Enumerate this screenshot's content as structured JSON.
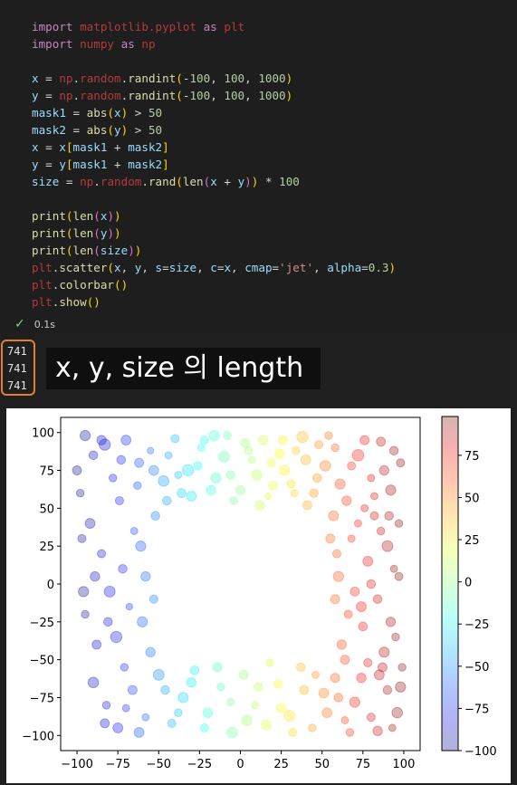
{
  "code_lines": [
    [
      [
        "kw",
        "import"
      ],
      [
        "op",
        " "
      ],
      [
        "mod",
        "matplotlib.pyplot"
      ],
      [
        "op",
        " "
      ],
      [
        "kw",
        "as"
      ],
      [
        "op",
        " "
      ],
      [
        "mod",
        "plt"
      ]
    ],
    [
      [
        "kw",
        "import"
      ],
      [
        "op",
        " "
      ],
      [
        "mod",
        "numpy"
      ],
      [
        "op",
        " "
      ],
      [
        "kw",
        "as"
      ],
      [
        "op",
        " "
      ],
      [
        "mod",
        "np"
      ]
    ],
    [],
    [
      [
        "var",
        "x"
      ],
      [
        "op",
        " = "
      ],
      [
        "mod",
        "np"
      ],
      [
        "op",
        "."
      ],
      [
        "mod",
        "random"
      ],
      [
        "op",
        "."
      ],
      [
        "fn",
        "randint"
      ],
      [
        "br1",
        "("
      ],
      [
        "op",
        "-"
      ],
      [
        "num",
        "100"
      ],
      [
        "op",
        ", "
      ],
      [
        "num",
        "100"
      ],
      [
        "op",
        ", "
      ],
      [
        "num",
        "1000"
      ],
      [
        "br1",
        ")"
      ]
    ],
    [
      [
        "var",
        "y"
      ],
      [
        "op",
        " = "
      ],
      [
        "mod",
        "np"
      ],
      [
        "op",
        "."
      ],
      [
        "mod",
        "random"
      ],
      [
        "op",
        "."
      ],
      [
        "fn",
        "randint"
      ],
      [
        "br1",
        "("
      ],
      [
        "op",
        "-"
      ],
      [
        "num",
        "100"
      ],
      [
        "op",
        ", "
      ],
      [
        "num",
        "100"
      ],
      [
        "op",
        ", "
      ],
      [
        "num",
        "1000"
      ],
      [
        "br1",
        ")"
      ]
    ],
    [
      [
        "var",
        "mask1"
      ],
      [
        "op",
        " = "
      ],
      [
        "fn",
        "abs"
      ],
      [
        "br1",
        "("
      ],
      [
        "var",
        "x"
      ],
      [
        "br1",
        ")"
      ],
      [
        "op",
        " > "
      ],
      [
        "num",
        "50"
      ]
    ],
    [
      [
        "var",
        "mask2"
      ],
      [
        "op",
        " = "
      ],
      [
        "fn",
        "abs"
      ],
      [
        "br1",
        "("
      ],
      [
        "var",
        "y"
      ],
      [
        "br1",
        ")"
      ],
      [
        "op",
        " > "
      ],
      [
        "num",
        "50"
      ]
    ],
    [
      [
        "var",
        "x"
      ],
      [
        "op",
        " = "
      ],
      [
        "var",
        "x"
      ],
      [
        "br1",
        "["
      ],
      [
        "var",
        "mask1"
      ],
      [
        "op",
        " + "
      ],
      [
        "var",
        "mask2"
      ],
      [
        "br1",
        "]"
      ]
    ],
    [
      [
        "var",
        "y"
      ],
      [
        "op",
        " = "
      ],
      [
        "var",
        "y"
      ],
      [
        "br1",
        "["
      ],
      [
        "var",
        "mask1"
      ],
      [
        "op",
        " + "
      ],
      [
        "var",
        "mask2"
      ],
      [
        "br1",
        "]"
      ]
    ],
    [
      [
        "var",
        "size"
      ],
      [
        "op",
        " = "
      ],
      [
        "mod",
        "np"
      ],
      [
        "op",
        "."
      ],
      [
        "mod",
        "random"
      ],
      [
        "op",
        "."
      ],
      [
        "fn",
        "rand"
      ],
      [
        "br1",
        "("
      ],
      [
        "fn",
        "len"
      ],
      [
        "br2",
        "("
      ],
      [
        "var",
        "x"
      ],
      [
        "op",
        " + "
      ],
      [
        "var",
        "y"
      ],
      [
        "br2",
        ")"
      ],
      [
        "br1",
        ")"
      ],
      [
        "op",
        " * "
      ],
      [
        "num",
        "100"
      ]
    ],
    [],
    [
      [
        "fn",
        "print"
      ],
      [
        "br1",
        "("
      ],
      [
        "fn",
        "len"
      ],
      [
        "br2",
        "("
      ],
      [
        "var",
        "x"
      ],
      [
        "br2",
        ")"
      ],
      [
        "br1",
        ")"
      ]
    ],
    [
      [
        "fn",
        "print"
      ],
      [
        "br1",
        "("
      ],
      [
        "fn",
        "len"
      ],
      [
        "br2",
        "("
      ],
      [
        "var",
        "y"
      ],
      [
        "br2",
        ")"
      ],
      [
        "br1",
        ")"
      ]
    ],
    [
      [
        "fn",
        "print"
      ],
      [
        "br1",
        "("
      ],
      [
        "fn",
        "len"
      ],
      [
        "br2",
        "("
      ],
      [
        "var",
        "size"
      ],
      [
        "br2",
        ")"
      ],
      [
        "br1",
        ")"
      ]
    ],
    [
      [
        "mod",
        "plt"
      ],
      [
        "op",
        "."
      ],
      [
        "fn",
        "scatter"
      ],
      [
        "br1",
        "("
      ],
      [
        "var",
        "x"
      ],
      [
        "op",
        ", "
      ],
      [
        "var",
        "y"
      ],
      [
        "op",
        ", "
      ],
      [
        "var",
        "s"
      ],
      [
        "op",
        "="
      ],
      [
        "var",
        "size"
      ],
      [
        "op",
        ", "
      ],
      [
        "var",
        "c"
      ],
      [
        "op",
        "="
      ],
      [
        "var",
        "x"
      ],
      [
        "op",
        ", "
      ],
      [
        "var",
        "cmap"
      ],
      [
        "op",
        "="
      ],
      [
        "str",
        "'jet'"
      ],
      [
        "op",
        ", "
      ],
      [
        "var",
        "alpha"
      ],
      [
        "op",
        "="
      ],
      [
        "num",
        "0.3"
      ],
      [
        "br1",
        ")"
      ]
    ],
    [
      [
        "mod",
        "plt"
      ],
      [
        "op",
        "."
      ],
      [
        "fn",
        "colorbar"
      ],
      [
        "br1",
        "()"
      ]
    ],
    [
      [
        "mod",
        "plt"
      ],
      [
        "op",
        "."
      ],
      [
        "fn",
        "show"
      ],
      [
        "br1",
        "()"
      ]
    ]
  ],
  "status": {
    "check": "✓",
    "time": "0.1s"
  },
  "output": {
    "lines": [
      "741",
      "741",
      "741"
    ]
  },
  "caption": "x, y, size 의 length",
  "colors": {
    "cell_bg": "#1e1e1e",
    "output_border": "#e0802a",
    "check": "#89d185"
  },
  "chart_data": {
    "type": "scatter",
    "cmap": "jet",
    "alpha": 0.3,
    "xlim": [
      -110,
      110
    ],
    "ylim": [
      -110,
      110
    ],
    "xticks": [
      -100,
      -75,
      -50,
      -25,
      0,
      25,
      50,
      75,
      100
    ],
    "yticks": [
      -100,
      -75,
      -50,
      -25,
      0,
      25,
      50,
      75,
      100
    ],
    "colorbar": {
      "ticks": [
        -100,
        -75,
        -50,
        -25,
        0,
        25,
        50,
        75
      ],
      "range": [
        -100,
        98
      ]
    },
    "points": [
      [
        -95,
        98,
        60
      ],
      [
        -90,
        85,
        40
      ],
      [
        -83,
        92,
        75
      ],
      [
        -78,
        70,
        30
      ],
      [
        -70,
        95,
        55
      ],
      [
        -62,
        80,
        45
      ],
      [
        -55,
        88,
        20
      ],
      [
        -47,
        68,
        65
      ],
      [
        -40,
        96,
        35
      ],
      [
        -32,
        75,
        80
      ],
      [
        -24,
        90,
        25
      ],
      [
        -18,
        62,
        50
      ],
      [
        -10,
        84,
        70
      ],
      [
        -4,
        55,
        30
      ],
      [
        3,
        93,
        45
      ],
      [
        10,
        72,
        60
      ],
      [
        17,
        58,
        20
      ],
      [
        24,
        86,
        55
      ],
      [
        31,
        66,
        35
      ],
      [
        38,
        97,
        75
      ],
      [
        45,
        60,
        40
      ],
      [
        52,
        78,
        65
      ],
      [
        58,
        90,
        30
      ],
      [
        65,
        55,
        50
      ],
      [
        72,
        85,
        80
      ],
      [
        80,
        70,
        25
      ],
      [
        86,
        94,
        45
      ],
      [
        92,
        62,
        60
      ],
      [
        98,
        80,
        35
      ],
      [
        -98,
        60,
        30
      ],
      [
        -92,
        40,
        55
      ],
      [
        -85,
        20,
        35
      ],
      [
        -80,
        -5,
        70
      ],
      [
        -72,
        10,
        40
      ],
      [
        -65,
        35,
        25
      ],
      [
        -60,
        -25,
        60
      ],
      [
        -88,
        -40,
        45
      ],
      [
        -95,
        -20,
        30
      ],
      [
        -76,
        -35,
        75
      ],
      [
        -68,
        -15,
        20
      ],
      [
        -58,
        5,
        50
      ],
      [
        -52,
        45,
        40
      ],
      [
        -90,
        -65,
        65
      ],
      [
        -82,
        -80,
        30
      ],
      [
        -75,
        -95,
        55
      ],
      [
        -66,
        -70,
        45
      ],
      [
        -58,
        -88,
        25
      ],
      [
        -50,
        -60,
        70
      ],
      [
        -42,
        -92,
        35
      ],
      [
        -35,
        -75,
        60
      ],
      [
        -28,
        -57,
        40
      ],
      [
        -20,
        -85,
        50
      ],
      [
        -12,
        -68,
        30
      ],
      [
        -5,
        -98,
        65
      ],
      [
        2,
        -60,
        45
      ],
      [
        9,
        -80,
        25
      ],
      [
        16,
        -93,
        55
      ],
      [
        23,
        -66,
        35
      ],
      [
        30,
        -87,
        70
      ],
      [
        37,
        -55,
        40
      ],
      [
        44,
        -95,
        30
      ],
      [
        51,
        -72,
        55
      ],
      [
        58,
        -62,
        45
      ],
      [
        64,
        -90,
        25
      ],
      [
        70,
        -78,
        60
      ],
      [
        78,
        -52,
        35
      ],
      [
        84,
        -97,
        50
      ],
      [
        90,
        -70,
        40
      ],
      [
        96,
        -85,
        65
      ],
      [
        99,
        -55,
        30
      ],
      [
        55,
        30,
        45
      ],
      [
        60,
        5,
        60
      ],
      [
        66,
        -20,
        35
      ],
      [
        72,
        40,
        25
      ],
      [
        78,
        15,
        55
      ],
      [
        84,
        -10,
        40
      ],
      [
        90,
        25,
        70
      ],
      [
        95,
        -35,
        30
      ],
      [
        62,
        -40,
        50
      ],
      [
        70,
        -5,
        45
      ],
      [
        82,
        45,
        35
      ],
      [
        88,
        -45,
        60
      ],
      [
        94,
        10,
        25
      ],
      [
        57,
        45,
        55
      ],
      [
        75,
        -28,
        40
      ],
      [
        97,
        40,
        30
      ],
      [
        -100,
        75,
        45
      ],
      [
        -96,
        -5,
        60
      ],
      [
        -74,
        55,
        35
      ],
      [
        -55,
        -45,
        50
      ],
      [
        -45,
        55,
        40
      ],
      [
        -38,
        72,
        25
      ],
      [
        -30,
        58,
        55
      ],
      [
        -22,
        95,
        35
      ],
      [
        -15,
        70,
        60
      ],
      [
        -8,
        98,
        30
      ],
      [
        0,
        62,
        45
      ],
      [
        7,
        82,
        25
      ],
      [
        14,
        95,
        50
      ],
      [
        20,
        65,
        40
      ],
      [
        27,
        75,
        60
      ],
      [
        34,
        88,
        30
      ],
      [
        41,
        52,
        45
      ],
      [
        48,
        92,
        35
      ],
      [
        -85,
        95,
        50
      ],
      [
        -73,
        82,
        40
      ],
      [
        -63,
        65,
        30
      ],
      [
        -53,
        75,
        55
      ],
      [
        -44,
        85,
        25
      ],
      [
        -36,
        60,
        45
      ],
      [
        -26,
        78,
        35
      ],
      [
        -16,
        98,
        60
      ],
      [
        -6,
        72,
        40
      ],
      [
        5,
        88,
        30
      ],
      [
        12,
        52,
        50
      ],
      [
        19,
        80,
        35
      ],
      [
        26,
        95,
        45
      ],
      [
        33,
        60,
        25
      ],
      [
        40,
        82,
        55
      ],
      [
        47,
        70,
        40
      ],
      [
        54,
        98,
        30
      ],
      [
        61,
        66,
        60
      ],
      [
        68,
        78,
        35
      ],
      [
        76,
        95,
        45
      ],
      [
        82,
        58,
        25
      ],
      [
        88,
        75,
        50
      ],
      [
        94,
        88,
        40
      ],
      [
        -97,
        30,
        35
      ],
      [
        -89,
        5,
        50
      ],
      [
        -81,
        -25,
        40
      ],
      [
        -71,
        -55,
        30
      ],
      [
        -61,
        25,
        60
      ],
      [
        -53,
        -10,
        35
      ],
      [
        -83,
        -92,
        45
      ],
      [
        -70,
        -82,
        25
      ],
      [
        -62,
        -98,
        55
      ],
      [
        -46,
        -70,
        40
      ],
      [
        -38,
        -85,
        30
      ],
      [
        -30,
        -65,
        50
      ],
      [
        -22,
        -95,
        35
      ],
      [
        -14,
        -55,
        45
      ],
      [
        -6,
        -78,
        25
      ],
      [
        4,
        -90,
        60
      ],
      [
        11,
        -68,
        40
      ],
      [
        18,
        -52,
        30
      ],
      [
        25,
        -82,
        50
      ],
      [
        32,
        -98,
        35
      ],
      [
        39,
        -70,
        45
      ],
      [
        46,
        -60,
        25
      ],
      [
        53,
        -85,
        55
      ],
      [
        60,
        -75,
        40
      ],
      [
        67,
        -98,
        30
      ],
      [
        74,
        -62,
        50
      ],
      [
        80,
        -88,
        35
      ],
      [
        87,
        -55,
        45
      ],
      [
        93,
        -95,
        25
      ],
      [
        98,
        -68,
        60
      ],
      [
        59,
        20,
        35
      ],
      [
        64,
        -50,
        45
      ],
      [
        68,
        30,
        25
      ],
      [
        74,
        -15,
        55
      ],
      [
        80,
        0,
        40
      ],
      [
        86,
        35,
        30
      ],
      [
        92,
        -25,
        50
      ],
      [
        97,
        5,
        35
      ],
      [
        58,
        -10,
        45
      ],
      [
        76,
        50,
        25
      ],
      [
        85,
        -60,
        55
      ],
      [
        91,
        45,
        40
      ]
    ]
  }
}
